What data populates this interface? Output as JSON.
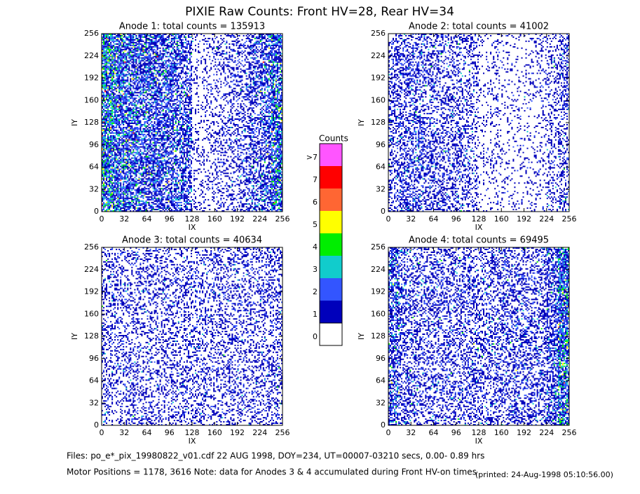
{
  "title": "PIXIE Raw Counts:  Front HV=28, Rear HV=34",
  "chart_data": [
    {
      "type": "heatmap",
      "title": "Anode 1: total counts = 135913",
      "xlabel": "IX",
      "ylabel": "IY",
      "xlim": [
        0,
        256
      ],
      "ylim": [
        0,
        256
      ],
      "xticks": [
        0,
        32,
        64,
        96,
        128,
        160,
        192,
        224,
        256
      ],
      "yticks": [
        0,
        32,
        64,
        96,
        128,
        160,
        192,
        224,
        256
      ],
      "column_density": [
        3.2,
        2.4,
        2.1,
        2.0,
        2.0,
        1.8,
        1.6,
        1.5,
        0.3,
        0.4,
        0.5,
        0.6,
        0.8,
        1.2,
        1.6,
        2.6
      ]
    },
    {
      "type": "heatmap",
      "title": "Anode 2: total counts = 41002",
      "xlabel": "IX",
      "ylabel": "IY",
      "xlim": [
        0,
        256
      ],
      "ylim": [
        0,
        256
      ],
      "xticks": [
        0,
        32,
        64,
        96,
        128,
        160,
        192,
        224,
        256
      ],
      "yticks": [
        0,
        32,
        64,
        96,
        128,
        160,
        192,
        224,
        256
      ],
      "column_density": [
        0.8,
        1.0,
        1.0,
        0.9,
        0.8,
        0.7,
        0.7,
        0.6,
        0.2,
        0.3,
        0.2,
        0.2,
        0.25,
        0.3,
        0.5,
        0.8
      ]
    },
    {
      "type": "heatmap",
      "title": "Anode 3: total counts = 40634",
      "xlabel": "IX",
      "ylabel": "IY",
      "xlim": [
        0,
        256
      ],
      "ylim": [
        0,
        256
      ],
      "xticks": [
        0,
        32,
        64,
        96,
        128,
        160,
        192,
        224,
        256
      ],
      "yticks": [
        0,
        32,
        64,
        96,
        128,
        160,
        192,
        224,
        256
      ],
      "column_density": [
        0.7,
        0.6,
        0.6,
        0.6,
        0.6,
        0.6,
        0.6,
        0.6,
        0.6,
        0.6,
        0.6,
        0.6,
        0.6,
        0.6,
        0.6,
        0.7
      ]
    },
    {
      "type": "heatmap",
      "title": "Anode 4: total counts = 69495",
      "xlabel": "IX",
      "ylabel": "IY",
      "xlim": [
        0,
        256
      ],
      "ylim": [
        0,
        256
      ],
      "xticks": [
        0,
        32,
        64,
        96,
        128,
        160,
        192,
        224,
        256
      ],
      "yticks": [
        0,
        32,
        64,
        96,
        128,
        160,
        192,
        224,
        256
      ],
      "column_density": [
        1.6,
        0.9,
        0.8,
        0.8,
        0.8,
        0.8,
        0.8,
        0.8,
        0.7,
        0.8,
        0.8,
        0.8,
        0.8,
        0.9,
        1.3,
        2.8
      ]
    }
  ],
  "colorbar": {
    "title": "Counts",
    "levels": [
      {
        "label": ">7",
        "color": "#ff55ff"
      },
      {
        "label": "7",
        "color": "#ff0000"
      },
      {
        "label": "6",
        "color": "#ff6633"
      },
      {
        "label": "5",
        "color": "#ffff00"
      },
      {
        "label": "4",
        "color": "#00ee00"
      },
      {
        "label": "3",
        "color": "#11cccc"
      },
      {
        "label": "2",
        "color": "#3355ff"
      },
      {
        "label": "1",
        "color": "#0000bb"
      },
      {
        "label": "0",
        "color": "#ffffff"
      }
    ]
  },
  "footer": [
    "Files: po_e*_pix_19980822_v01.cdf    22 AUG 1998, DOY=234, UT=00007-03210 secs,  0.00- 0.89 hrs",
    "Motor Positions = 1178, 3616    Note: data for Anodes 3 & 4 accumulated during Front HV-on times",
    "(printed: 24-Aug-1998 05:10:56.00)"
  ]
}
